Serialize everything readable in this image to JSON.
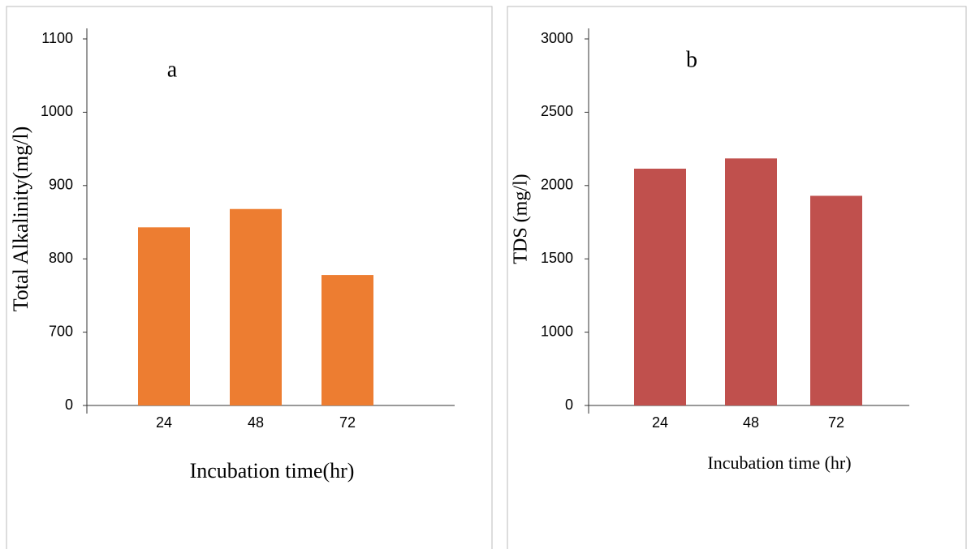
{
  "chart_data": [
    {
      "type": "bar",
      "annotation": "a",
      "y_label": "Total Alkalinity(mg/l)",
      "x_label": "Incubation time(hr)",
      "categories": [
        "24",
        "48",
        "72"
      ],
      "values": [
        843,
        868,
        778
      ],
      "color": "#ed7d31",
      "ylim": [
        0,
        1100
      ],
      "yticks": [
        0,
        700,
        800,
        900,
        1000,
        1100
      ],
      "axis_break": true
    },
    {
      "type": "bar",
      "annotation": "b",
      "y_label": "TDS (mg/l)",
      "x_label": "Incubation time (hr)",
      "categories": [
        "24",
        "48",
        "72"
      ],
      "values": [
        2115,
        2185,
        1930
      ],
      "color": "#c0504d",
      "ylim": [
        0,
        3000
      ],
      "yticks": [
        0,
        1000,
        1500,
        2000,
        2500,
        3000
      ],
      "axis_break": true
    }
  ]
}
